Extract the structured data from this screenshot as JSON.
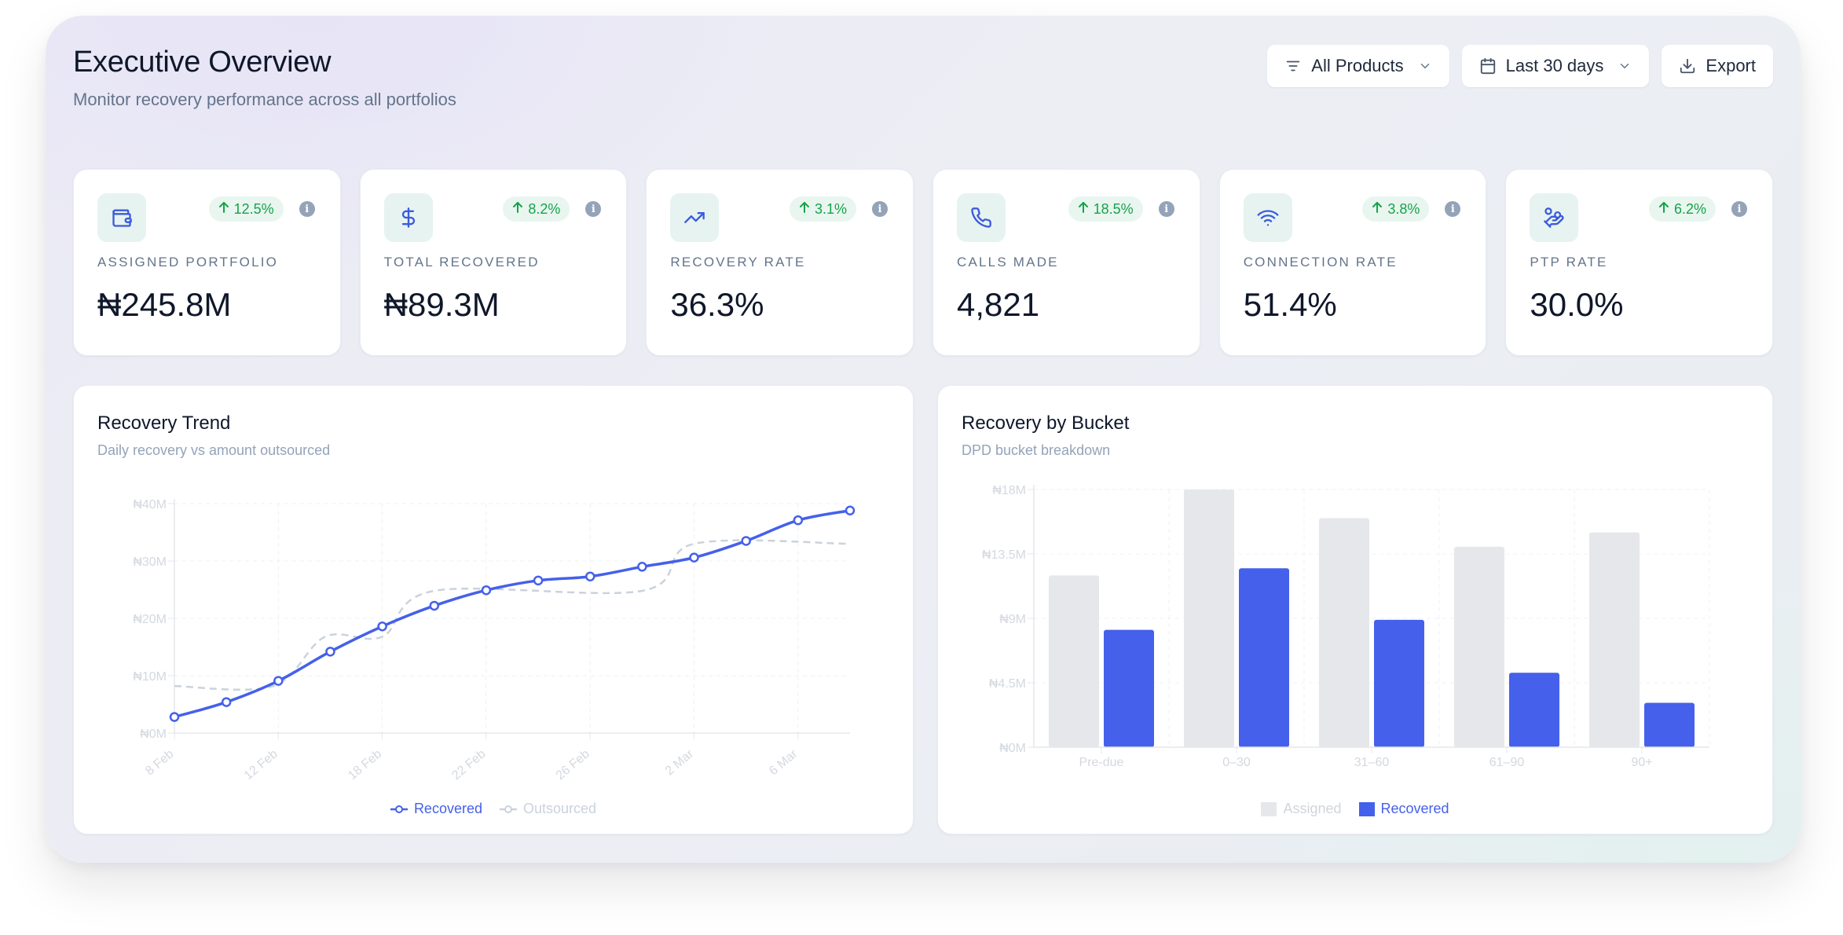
{
  "header": {
    "title": "Executive Overview",
    "subtitle": "Monitor recovery performance across all portfolios"
  },
  "toolbar": {
    "products_label": "All Products",
    "range_label": "Last 30 days",
    "export_label": "Export"
  },
  "kpis": [
    {
      "label": "ASSIGNED PORTFOLIO",
      "value": "₦245.8M",
      "change": "12.5%",
      "icon": "wallet-icon"
    },
    {
      "label": "TOTAL RECOVERED",
      "value": "₦89.3M",
      "change": "8.2%",
      "icon": "dollar-icon"
    },
    {
      "label": "RECOVERY RATE",
      "value": "36.3%",
      "change": "3.1%",
      "icon": "trending-up-icon"
    },
    {
      "label": "CALLS MADE",
      "value": "4,821",
      "change": "18.5%",
      "icon": "phone-icon"
    },
    {
      "label": "CONNECTION RATE",
      "value": "51.4%",
      "change": "3.8%",
      "icon": "wifi-icon"
    },
    {
      "label": "PTP RATE",
      "value": "30.0%",
      "change": "6.2%",
      "icon": "hand-coins-icon"
    }
  ],
  "info_glyph": "i",
  "colors": {
    "accent": "#4560ea",
    "muted_series": "#cbd2dc",
    "positive": "#16a34a",
    "icon_bg": "#e7f3f1",
    "icon_fg": "#3b5bdb"
  },
  "trend_card": {
    "title": "Recovery Trend",
    "subtitle": "Daily recovery vs amount outsourced"
  },
  "bucket_card": {
    "title": "Recovery by Bucket",
    "subtitle": "DPD bucket breakdown"
  },
  "chart_data": [
    {
      "type": "line",
      "title": "Recovery Trend",
      "y_tick_labels": [
        "₦0M",
        "₦10M",
        "₦20M",
        "₦30M",
        "₦40M"
      ],
      "ylim": [
        0,
        40
      ],
      "x_tick_labels": [
        "8 Feb",
        "12 Feb",
        "18 Feb",
        "22 Feb",
        "26 Feb",
        "2 Mar",
        "6 Mar"
      ],
      "x_ticks": [
        0,
        2,
        4,
        6,
        8,
        10,
        12
      ],
      "xlim": [
        0,
        13
      ],
      "grid": true,
      "legend_position": "bottom",
      "series": [
        {
          "name": "Recovered",
          "x": [
            0,
            1,
            2,
            3,
            4,
            5,
            6,
            7,
            8,
            9,
            10,
            11,
            12,
            13
          ],
          "y": [
            2.8,
            5.4,
            9.1,
            14.2,
            18.6,
            22.2,
            24.9,
            26.6,
            27.3,
            29.0,
            30.6,
            33.5,
            37.1,
            38.8
          ]
        },
        {
          "name": "Outsourced",
          "x": [
            0,
            1.9,
            2.9,
            4.0,
            5.0,
            9.0,
            10.0,
            13.0
          ],
          "y": [
            8.2,
            8.2,
            16.8,
            16.8,
            24.8,
            24.8,
            33.0,
            33.0
          ]
        }
      ]
    },
    {
      "type": "bar",
      "title": "Recovery by Bucket",
      "categories": [
        "Pre-due",
        "0–30",
        "31–60",
        "61–90",
        "90+"
      ],
      "y_tick_labels": [
        "₦0M",
        "₦4.5M",
        "₦9M",
        "₦13.5M",
        "₦18M"
      ],
      "ylim": [
        0,
        18
      ],
      "grid": true,
      "legend_position": "bottom",
      "series": [
        {
          "name": "Assigned",
          "values": [
            12.0,
            18.0,
            16.0,
            14.0,
            15.0
          ]
        },
        {
          "name": "Recovered",
          "values": [
            8.2,
            12.5,
            8.9,
            5.2,
            3.1
          ]
        }
      ]
    }
  ]
}
